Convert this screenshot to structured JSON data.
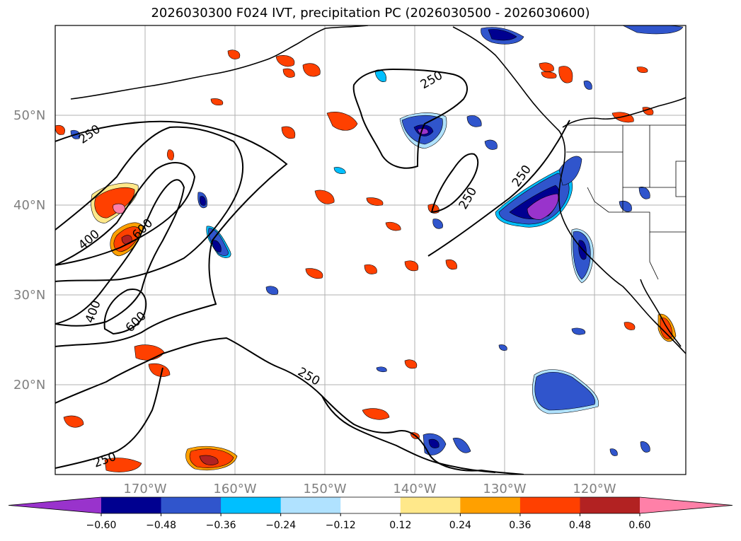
{
  "title": "2026030300 F024 IVT, precipitation PC (2026030500 - 2026030600)",
  "lat_labels": [
    "50°N",
    "40°N",
    "30°N",
    "20°N"
  ],
  "lon_labels": [
    "170°W",
    "160°W",
    "150°W",
    "140°W",
    "130°W",
    "120°W"
  ],
  "contour_labels": [
    "250",
    "250",
    "250",
    "250",
    "250",
    "250",
    "400",
    "400",
    "600",
    "600"
  ],
  "colorbar": {
    "ticks": [
      "−0.60",
      "−0.48",
      "−0.36",
      "−0.24",
      "−0.12",
      "0.12",
      "0.24",
      "0.36",
      "0.48",
      "0.60"
    ],
    "colors": [
      "#9933cc",
      "#000090",
      "#3055cc",
      "#00bfff",
      "#b0e2ff",
      "#ffffff",
      "#ffe88a",
      "#ffa000",
      "#ff4000",
      "#b22222",
      "#ff80a8"
    ]
  },
  "colors": {
    "coast": "#000000",
    "contour": "#000000",
    "grid": "#b0b0b0"
  }
}
